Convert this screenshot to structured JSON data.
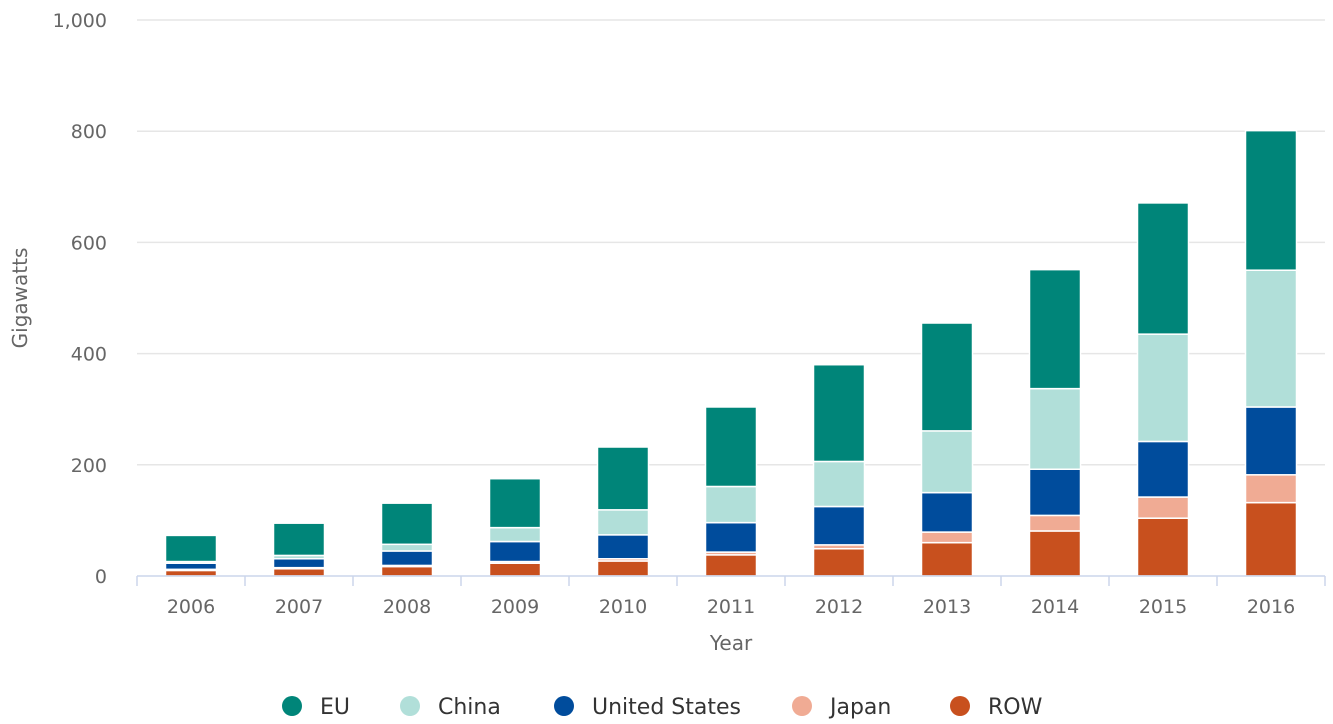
{
  "chart_data": {
    "type": "bar",
    "stacked": true,
    "title": "",
    "xlabel": "Year",
    "ylabel": "Gigawatts",
    "ylim": [
      0,
      1000
    ],
    "yticks": [
      0,
      200,
      400,
      600,
      800,
      1000
    ],
    "ytick_labels": [
      "0",
      "200",
      "400",
      "600",
      "800",
      "1,000"
    ],
    "grid": true,
    "legend_position": "bottom",
    "categories": [
      "2006",
      "2007",
      "2008",
      "2009",
      "2010",
      "2011",
      "2012",
      "2013",
      "2014",
      "2015",
      "2016"
    ],
    "series": [
      {
        "name": "ROW",
        "color": "#c8501e",
        "values": [
          10,
          13,
          17,
          23,
          27,
          38,
          49,
          60,
          81,
          104,
          132
        ]
      },
      {
        "name": "Japan",
        "color": "#f0ab94",
        "values": [
          2,
          2,
          2,
          3,
          4,
          5,
          7,
          19,
          28,
          38,
          50
        ]
      },
      {
        "name": "United States",
        "color": "#004c9c",
        "values": [
          11,
          16,
          26,
          36,
          43,
          53,
          69,
          71,
          83,
          100,
          122
        ]
      },
      {
        "name": "China",
        "color": "#b1dfd9",
        "values": [
          3,
          6,
          12,
          25,
          45,
          65,
          81,
          111,
          145,
          193,
          246
        ]
      },
      {
        "name": "EU",
        "color": "#008579",
        "values": [
          47,
          58,
          74,
          88,
          113,
          143,
          174,
          194,
          214,
          236,
          251
        ]
      }
    ],
    "legend_order": [
      "EU",
      "China",
      "United States",
      "Japan",
      "ROW"
    ]
  }
}
